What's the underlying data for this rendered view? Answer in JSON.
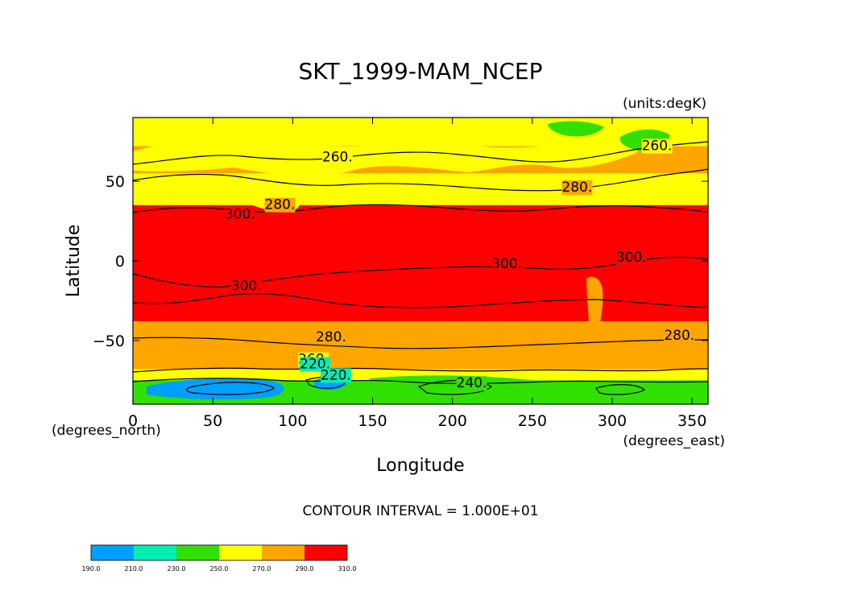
{
  "chart_data": {
    "type": "heatmap",
    "title": "SKT_1999-MAM_NCEP",
    "units": "(units:degK)",
    "xlabel": "Longitude",
    "ylabel": "Latitude",
    "x_unit_label": "(degrees_east)",
    "y_unit_label": "(degrees_north)",
    "xlim": [
      0,
      360
    ],
    "ylim": [
      -90,
      90
    ],
    "x_ticks": [
      0,
      50,
      100,
      150,
      200,
      250,
      300,
      350
    ],
    "y_ticks": [
      -50,
      0,
      50
    ],
    "contour_interval": "CONTOUR INTERVAL = 1.000E+01",
    "colorbar": {
      "levels": [
        "190.0",
        "210.0",
        "230.0",
        "250.0",
        "270.0",
        "290.0",
        "310.0"
      ],
      "colors": [
        "#00a0ff",
        "#00f0b4",
        "#30e000",
        "#ffff00",
        "#ffa500",
        "#ff0000"
      ]
    },
    "zonal_bands": [
      {
        "lat_from": 90,
        "lat_to": 72,
        "value_range": [
          250,
          270
        ]
      },
      {
        "lat_from": 72,
        "lat_to": 55,
        "value_range": [
          270,
          290
        ]
      },
      {
        "lat_from": 35,
        "lat_to": -38,
        "value_range": [
          290,
          310
        ]
      },
      {
        "lat_from": -38,
        "lat_to": -68,
        "value_range": [
          270,
          290
        ]
      },
      {
        "lat_from": -68,
        "lat_to": -75,
        "value_range": [
          250,
          270
        ]
      },
      {
        "lat_from": -75,
        "lat_to": -90,
        "value_range": [
          210,
          250
        ]
      }
    ],
    "contour_labels": [
      {
        "text": "260.",
        "lon": 128,
        "lat": 63
      },
      {
        "text": "260.",
        "lon": 328,
        "lat": 70
      },
      {
        "text": "280.",
        "lon": 278,
        "lat": 44
      },
      {
        "text": "280.",
        "lon": 92,
        "lat": 33
      },
      {
        "text": "300.",
        "lon": 67,
        "lat": 27
      },
      {
        "text": "300.",
        "lon": 234,
        "lat": -4
      },
      {
        "text": "300.",
        "lon": 312,
        "lat": 0
      },
      {
        "text": "300.",
        "lon": 71,
        "lat": -18
      },
      {
        "text": "280.",
        "lon": 124,
        "lat": -50
      },
      {
        "text": "280.",
        "lon": 342,
        "lat": -49
      },
      {
        "text": "260.",
        "lon": 113,
        "lat": -64
      },
      {
        "text": "220.",
        "lon": 114,
        "lat": -67
      },
      {
        "text": "220.",
        "lon": 127,
        "lat": -74
      },
      {
        "text": "240.",
        "lon": 212,
        "lat": -79
      }
    ]
  }
}
